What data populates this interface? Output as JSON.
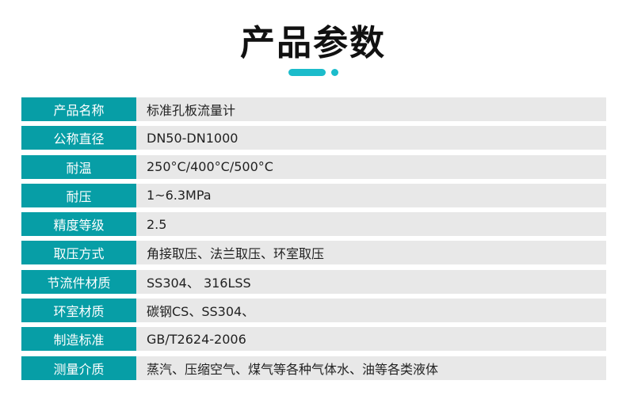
{
  "title": "产品参数",
  "colors": {
    "accent": "#079ea6",
    "row_bg": "#e8e8e8",
    "decoration": "#1cbccb"
  },
  "rows": [
    {
      "label": "产品名称",
      "value": "标准孔板流量计"
    },
    {
      "label": "公称直径",
      "value": "DN50-DN1000"
    },
    {
      "label": "耐温",
      "value": "250°C/400°C/500°C"
    },
    {
      "label": "耐压",
      "value": "1~6.3MPa"
    },
    {
      "label": "精度等级",
      "value": "2.5"
    },
    {
      "label": "取压方式",
      "value": "角接取压、法兰取压、环室取压"
    },
    {
      "label": "节流件材质",
      "value": "SS304、 316LSS"
    },
    {
      "label": "环室材质",
      "value": "碳钢CS、SS304、"
    },
    {
      "label": "制造标准",
      "value": "GB/T2624-2006"
    },
    {
      "label": "测量介质",
      "value": "蒸汽、压缩空气、煤气等各种气体水、油等各类液体"
    }
  ]
}
